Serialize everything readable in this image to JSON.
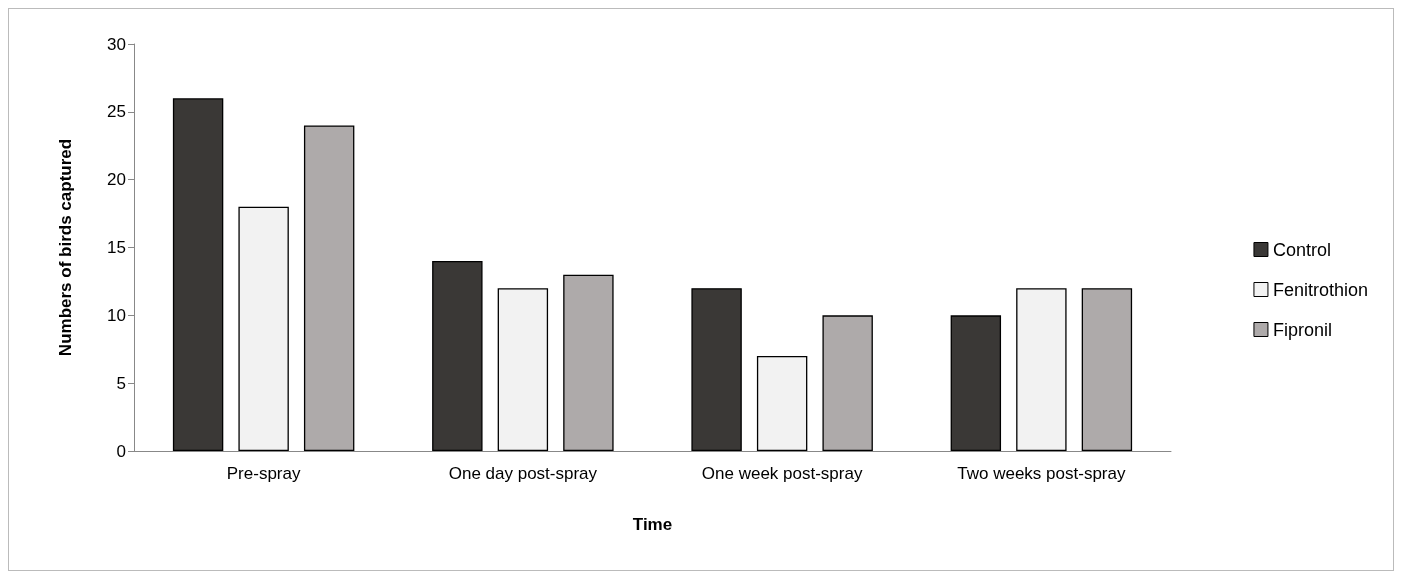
{
  "chart_data": {
    "type": "bar",
    "xlabel": "Time",
    "ylabel": "Numbers of birds captured",
    "categories": [
      "Pre-spray",
      "One day post-spray",
      "One week post-spray",
      "Two weeks post-spray"
    ],
    "series": [
      {
        "name": "Control",
        "color": "#3a3836",
        "values": [
          26,
          14,
          12,
          10
        ]
      },
      {
        "name": "Fenitrothion",
        "color": "#f2f2f2",
        "values": [
          18,
          12,
          7,
          12
        ]
      },
      {
        "name": "Fipronil",
        "color": "#aeaaaa",
        "values": [
          24,
          13,
          10,
          12
        ]
      }
    ],
    "ylim": [
      0,
      30
    ],
    "yticks": [
      0,
      5,
      10,
      15,
      20,
      25,
      30
    ],
    "grid": false,
    "legend": "right"
  }
}
